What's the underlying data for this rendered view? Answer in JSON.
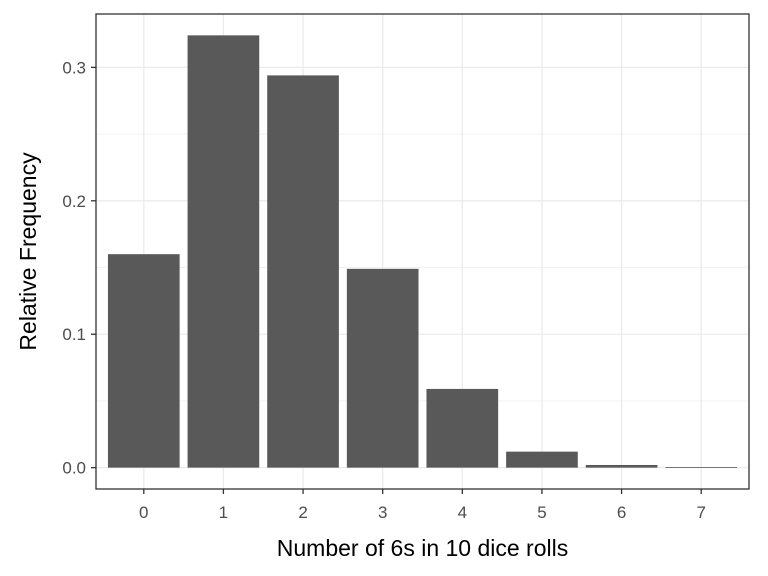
{
  "chart_data": {
    "type": "bar",
    "categories": [
      "0",
      "1",
      "2",
      "3",
      "4",
      "5",
      "6",
      "7"
    ],
    "values": [
      0.16,
      0.324,
      0.294,
      0.149,
      0.059,
      0.012,
      0.002,
      0.0005
    ],
    "xlabel": "Number of 6s in 10 dice rolls",
    "ylabel": "Relative Frequency",
    "ylim": [
      -0.016,
      0.34
    ],
    "yticks": [
      "0.0",
      "0.1",
      "0.2",
      "0.3"
    ],
    "grid": true,
    "bar_color": "#595959",
    "grid_color": "#ebebeb",
    "panel_border_color": "#333333"
  }
}
